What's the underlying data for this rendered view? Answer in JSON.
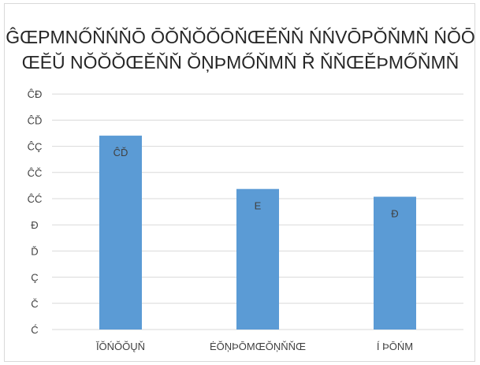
{
  "chart_data": {
    "type": "bar",
    "title_lines": [
      "ĜŒPMNŐŇŃŇŌ ŌŎŇŎŎŌŇŒĔŇŇ ŃŃVŌPŎŇMŇ ŃŎŌ",
      "ŒĔŬ NŎŎŎŒĔŇŇ ŎŅÞMŐŇMŇ Ř ŇŇŒĔÞMŐŇMŇ"
    ],
    "categories": [
      "ĬŎŃŎŎŲŇ",
      "ĖŎŅÞŌMŒŎŅŇŇŒ",
      "Í ÞŌŃM"
    ],
    "values": [
      20,
      14.5,
      13.7
    ],
    "data_labels": [
      "ĈĎ",
      "E",
      "Đ"
    ],
    "y_tick_labels": [
      "Ć",
      "Č",
      "Ç",
      "Ď",
      "Đ",
      "ĈĆ",
      "ĈČ",
      "ĈÇ",
      "ĈĎ",
      "ĈĐ"
    ],
    "ylim": [
      0,
      24
    ],
    "ytick_step": 2.7,
    "grid": true,
    "colors": {
      "bar": "#5b9bd5",
      "grid": "#d9d9d9",
      "text": "#404040"
    }
  }
}
